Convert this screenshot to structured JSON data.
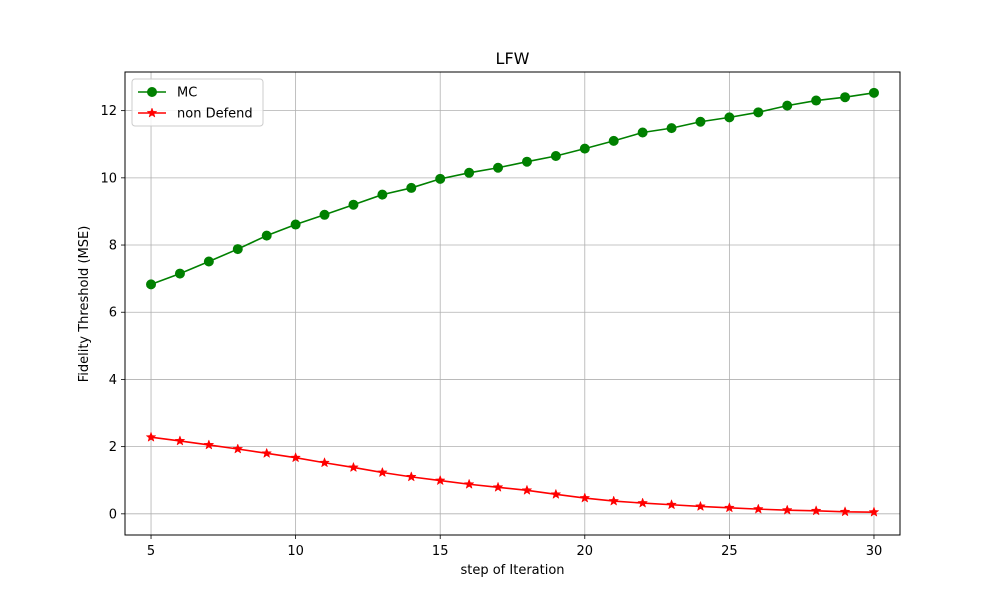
{
  "chart_data": {
    "type": "line",
    "title": "LFW",
    "xlabel": "step of Iteration",
    "ylabel": "Fidelity Threshold (MSE)",
    "xlim": [
      4.1,
      30.9
    ],
    "ylim": [
      -0.63,
      13.15
    ],
    "xticks": [
      5,
      10,
      15,
      20,
      25,
      30
    ],
    "yticks": [
      0,
      2,
      4,
      6,
      8,
      10,
      12
    ],
    "grid": true,
    "legend_position": "top-left",
    "x": [
      5,
      6,
      7,
      8,
      9,
      10,
      11,
      12,
      13,
      14,
      15,
      16,
      17,
      18,
      19,
      20,
      21,
      22,
      23,
      24,
      25,
      26,
      27,
      28,
      29,
      30
    ],
    "series": [
      {
        "name": "MC",
        "color": "#008000",
        "marker": "circle",
        "values": [
          6.83,
          7.15,
          7.51,
          7.88,
          8.28,
          8.61,
          8.9,
          9.2,
          9.5,
          9.7,
          9.97,
          10.15,
          10.3,
          10.48,
          10.65,
          10.87,
          11.1,
          11.35,
          11.48,
          11.67,
          11.8,
          11.95,
          12.15,
          12.3,
          12.4,
          12.53
        ]
      },
      {
        "name": "non Defend",
        "color": "#ff0000",
        "marker": "star",
        "values": [
          2.28,
          2.17,
          2.05,
          1.93,
          1.8,
          1.67,
          1.52,
          1.38,
          1.23,
          1.1,
          0.99,
          0.88,
          0.79,
          0.7,
          0.58,
          0.47,
          0.38,
          0.32,
          0.27,
          0.22,
          0.18,
          0.14,
          0.11,
          0.09,
          0.06,
          0.05
        ]
      }
    ]
  }
}
